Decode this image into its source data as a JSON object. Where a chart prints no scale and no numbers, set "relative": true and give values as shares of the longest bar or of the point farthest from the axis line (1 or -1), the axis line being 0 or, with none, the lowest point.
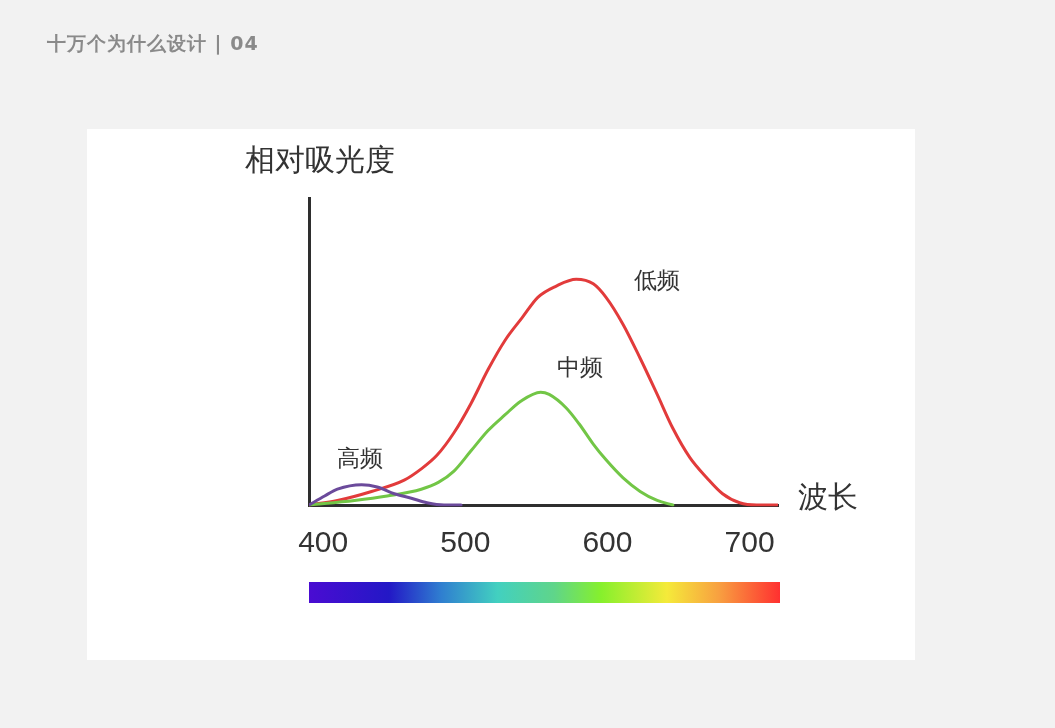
{
  "chart_data": {
    "type": "line",
    "title": "十万个为什么设计 | 04",
    "xlabel": "波长",
    "ylabel": "相对吸光度",
    "relative": true,
    "xlim": [
      390,
      720
    ],
    "xticks": [
      400,
      500,
      600,
      700
    ],
    "grid": false,
    "legend": false,
    "marker": "none",
    "line_style": "solid",
    "series": [
      {
        "name": "低频",
        "color": "#e23b3b",
        "x": [
          390,
          410,
          434,
          457,
          469,
          480,
          492,
          504,
          516,
          528,
          540,
          551,
          564,
          578,
          590,
          599,
          611,
          623,
          635,
          646,
          658,
          670,
          681,
          693,
          705,
          720
        ],
        "values": [
          0,
          0.02,
          0.06,
          0.11,
          0.16,
          0.22,
          0.32,
          0.45,
          0.6,
          0.73,
          0.83,
          0.92,
          0.97,
          1,
          0.98,
          0.92,
          0.8,
          0.65,
          0.49,
          0.34,
          0.21,
          0.12,
          0.05,
          0.01,
          0,
          0
        ]
      },
      {
        "name": "中频",
        "color": "#72c646",
        "x": [
          390,
          422,
          445,
          469,
          481,
          492,
          504,
          516,
          528,
          539,
          553,
          559,
          571,
          580,
          590,
          599,
          611,
          623,
          635,
          646
        ],
        "values": [
          0,
          0.02,
          0.04,
          0.07,
          0.1,
          0.15,
          0.24,
          0.33,
          0.4,
          0.46,
          0.5,
          0.49,
          0.43,
          0.36,
          0.27,
          0.2,
          0.12,
          0.06,
          0.02,
          0
        ]
      },
      {
        "name": "高频",
        "color": "#6b4a9b",
        "x": [
          390,
          401,
          410,
          427,
          438,
          450,
          462,
          473,
          485,
          497
        ],
        "values": [
          0,
          0.04,
          0.07,
          0.09,
          0.08,
          0.05,
          0.03,
          0.01,
          0,
          0
        ]
      }
    ]
  }
}
